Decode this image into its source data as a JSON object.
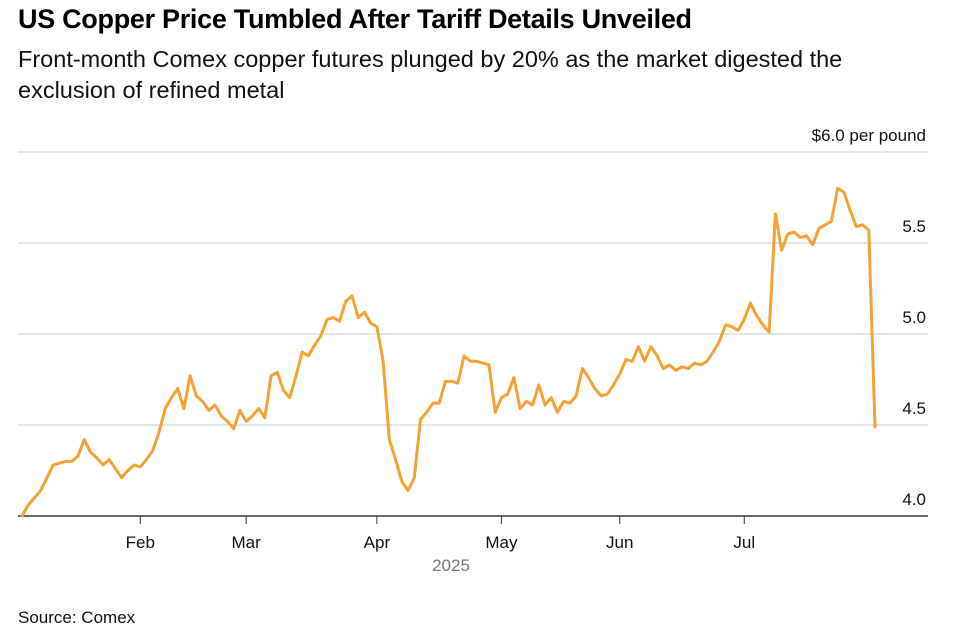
{
  "chart_data": {
    "type": "line",
    "title": "US Copper Price Tumbled After Tariff Details Unveiled",
    "subtitle": "Front-month Comex copper futures plunged by 20% as the market digested the exclusion of refined metal",
    "x_label": "2025",
    "source": "Source: Comex",
    "categories": [
      null,
      null,
      null,
      null,
      null,
      null,
      null,
      null,
      null,
      null,
      null,
      null,
      null,
      null,
      null,
      null,
      null,
      null,
      null,
      "Feb",
      null,
      null,
      null,
      null,
      null,
      null,
      null,
      null,
      null,
      null,
      null,
      null,
      null,
      null,
      null,
      null,
      "Mar",
      null,
      null,
      null,
      null,
      null,
      null,
      null,
      null,
      null,
      null,
      null,
      null,
      null,
      null,
      null,
      null,
      null,
      null,
      null,
      null,
      "Apr",
      null,
      null,
      null,
      null,
      null,
      null,
      null,
      null,
      null,
      null,
      null,
      null,
      null,
      null,
      null,
      null,
      null,
      null,
      null,
      "May",
      null,
      null,
      null,
      null,
      null,
      null,
      null,
      null,
      null,
      null,
      null,
      null,
      null,
      null,
      null,
      null,
      null,
      null,
      "Jun",
      null,
      null,
      null,
      null,
      null,
      null,
      null,
      null,
      null,
      null,
      null,
      null,
      null,
      null,
      null,
      null,
      null,
      null,
      null,
      "Jul",
      null,
      null,
      null,
      null,
      null,
      null,
      null,
      null,
      null,
      null,
      null,
      null,
      null,
      null,
      null,
      null,
      null,
      null,
      null,
      null,
      null
    ],
    "series": [
      {
        "name": "Front-month Comex copper futures",
        "color": "#f4a235",
        "values": [
          4.0,
          4.06,
          4.1,
          4.14,
          4.21,
          4.28,
          4.29,
          4.3,
          4.3,
          4.33,
          4.42,
          4.35,
          4.32,
          4.28,
          4.31,
          4.26,
          4.21,
          4.25,
          4.28,
          4.27,
          4.31,
          4.36,
          4.46,
          4.59,
          4.65,
          4.7,
          4.59,
          4.77,
          4.66,
          4.63,
          4.58,
          4.61,
          4.55,
          4.52,
          4.48,
          4.58,
          4.52,
          4.55,
          4.59,
          4.54,
          4.77,
          4.79,
          4.69,
          4.65,
          4.77,
          4.9,
          4.88,
          4.94,
          4.99,
          5.08,
          5.09,
          5.07,
          5.18,
          5.21,
          5.09,
          5.12,
          5.06,
          5.04,
          4.85,
          4.42,
          4.31,
          4.19,
          4.14,
          4.21,
          4.53,
          4.57,
          4.62,
          4.62,
          4.74,
          4.74,
          4.73,
          4.88,
          4.85,
          4.85,
          4.84,
          4.83,
          4.57,
          4.65,
          4.67,
          4.76,
          4.59,
          4.63,
          4.61,
          4.72,
          4.61,
          4.65,
          4.57,
          4.63,
          4.62,
          4.66,
          4.81,
          4.76,
          4.7,
          4.66,
          4.67,
          4.72,
          4.78,
          4.86,
          4.85,
          4.93,
          4.85,
          4.93,
          4.88,
          4.81,
          4.83,
          4.8,
          4.82,
          4.81,
          4.84,
          4.83,
          4.85,
          4.9,
          4.96,
          5.05,
          5.04,
          5.02,
          5.08,
          5.17,
          5.1,
          5.05,
          5.01,
          5.66,
          5.46,
          5.55,
          5.56,
          5.53,
          5.54,
          5.49,
          5.58,
          5.6,
          5.62,
          5.8,
          5.78,
          5.68,
          5.59,
          5.6,
          5.57,
          4.49
        ]
      }
    ],
    "ylim": [
      4,
      6
    ],
    "yticks": [
      {
        "value": 4,
        "label": "4.0"
      },
      4.5,
      {
        "value": 5,
        "label": "5.0"
      },
      5.5,
      {
        "value": 6,
        "label": "$6.0 per pound"
      }
    ],
    "grid": true
  }
}
